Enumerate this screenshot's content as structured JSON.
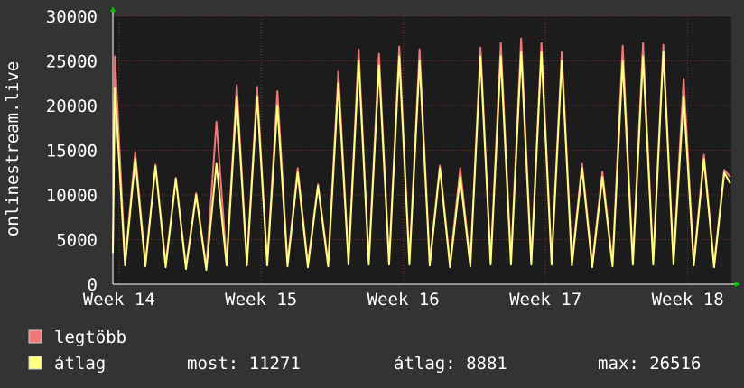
{
  "chart_data": {
    "type": "line",
    "y_label": "onlinestream.live",
    "x": [
      -0.3,
      -0.2,
      0.3,
      0.8,
      1.3,
      1.8,
      2.3,
      2.8,
      3.3,
      3.8,
      4.3,
      4.8,
      5.3,
      5.8,
      6.3,
      6.8,
      7.3,
      7.8,
      8.3,
      8.8,
      9.3,
      9.8,
      10.3,
      10.8,
      11.3,
      11.8,
      12.3,
      12.8,
      13.3,
      13.8,
      14.3,
      14.8,
      15.3,
      15.8,
      16.3,
      16.8,
      17.3,
      17.8,
      18.3,
      18.8,
      19.3,
      19.8,
      20.3,
      20.8,
      21.3,
      21.8,
      22.3,
      22.8,
      23.3,
      23.8,
      24.3,
      24.8,
      25.3,
      25.8,
      26.3,
      26.8,
      27.3,
      27.8,
      28.3,
      28.8,
      29.3,
      29.8,
      30.1
    ],
    "series": [
      {
        "name": "legtöbb",
        "color": "#f07878",
        "values": [
          3800,
          25500,
          2500,
          14800,
          2400,
          13400,
          2300,
          11900,
          2000,
          10200,
          1900,
          18200,
          2500,
          22300,
          2500,
          22100,
          2500,
          21600,
          2400,
          13000,
          2300,
          11200,
          2400,
          23800,
          2600,
          26300,
          2600,
          25800,
          2600,
          26600,
          2600,
          26300,
          2500,
          13300,
          2300,
          13000,
          2400,
          26500,
          2600,
          27000,
          2600,
          27500,
          2600,
          27000,
          2600,
          26000,
          2500,
          13500,
          2300,
          12600,
          2400,
          26700,
          2600,
          27000,
          2600,
          26800,
          2600,
          23000,
          2500,
          14500,
          2300,
          12800,
          12000
        ]
      },
      {
        "name": "átlag",
        "color": "#ffff80",
        "values": [
          3500,
          22000,
          2100,
          14000,
          2000,
          13200,
          1900,
          11800,
          1700,
          10000,
          1600,
          13500,
          2100,
          21000,
          2100,
          21000,
          2100,
          20000,
          2000,
          12500,
          1900,
          11000,
          2000,
          22500,
          2200,
          25000,
          2200,
          24500,
          2200,
          25500,
          2200,
          25000,
          2100,
          13000,
          1900,
          12000,
          2000,
          25500,
          2200,
          25500,
          2200,
          26000,
          2200,
          26000,
          2200,
          25000,
          2100,
          13000,
          1900,
          12000,
          2000,
          25000,
          2200,
          25500,
          2200,
          26000,
          2200,
          21000,
          2100,
          14000,
          1900,
          12500,
          11271
        ]
      }
    ],
    "xlim": [
      -0.3,
      30.15
    ],
    "xticks": [
      {
        "value": 0,
        "label": "Week 14"
      },
      {
        "value": 7,
        "label": "Week 15"
      },
      {
        "value": 14,
        "label": "Week 16"
      },
      {
        "value": 21,
        "label": "Week 17"
      },
      {
        "value": 28,
        "label": "Week 18"
      }
    ],
    "ylim": [
      0,
      30000
    ],
    "yticks": [
      0,
      5000,
      10000,
      15000,
      20000,
      25000,
      30000
    ],
    "grid": true,
    "stats": [
      {
        "label": "most:",
        "value": 11271
      },
      {
        "label": "átlag:",
        "value": 8881
      },
      {
        "label": "max:",
        "value": 26516
      }
    ]
  }
}
